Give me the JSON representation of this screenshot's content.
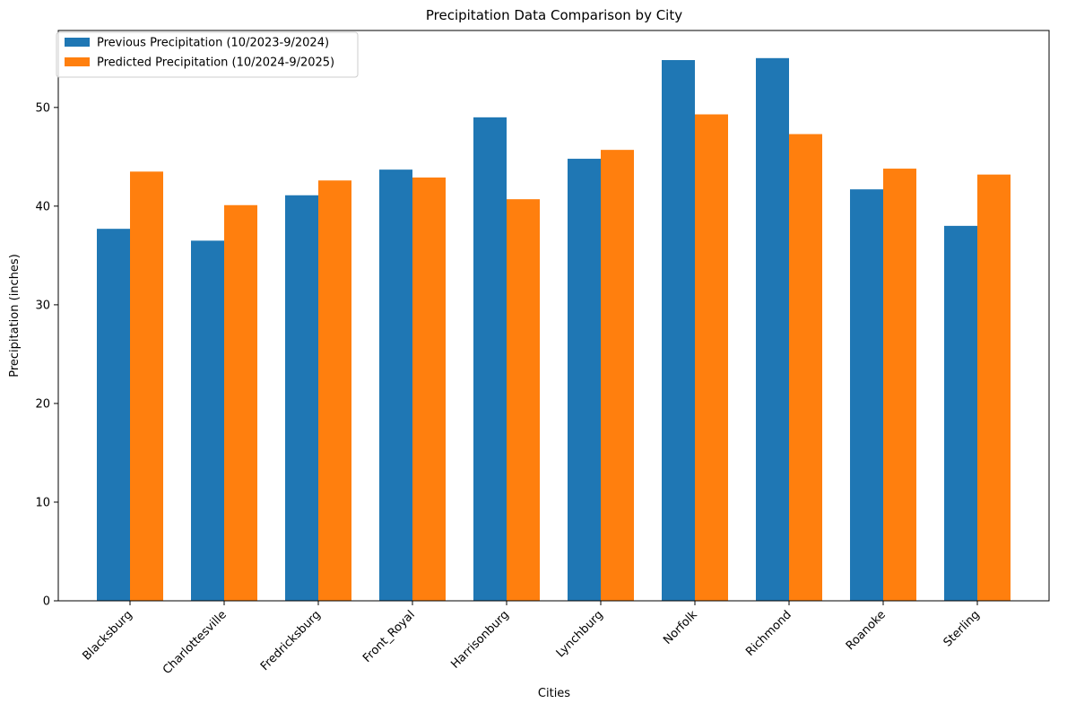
{
  "chart_data": {
    "type": "bar",
    "title": "Precipitation Data Comparison by City",
    "xlabel": "Cities",
    "ylabel": "Precipitation (inches)",
    "categories": [
      "Blacksburg",
      "Charlottesville",
      "Fredricksburg",
      "Front_Royal",
      "Harrisonburg",
      "Lynchburg",
      "Norfolk",
      "Richmond",
      "Roanoke",
      "Sterling"
    ],
    "series": [
      {
        "name": "Previous Precipitation (10/2023-9/2024)",
        "color": "#1f77b4",
        "values": [
          37.7,
          36.5,
          41.1,
          43.7,
          49.0,
          44.8,
          54.8,
          55.0,
          41.7,
          38.0
        ]
      },
      {
        "name": "Predicted Precipitation (10/2024-9/2025)",
        "color": "#ff7f0e",
        "values": [
          43.5,
          40.1,
          42.6,
          42.9,
          40.7,
          45.7,
          49.3,
          47.3,
          43.8,
          43.2
        ]
      }
    ],
    "ylim": [
      0,
      57.8
    ],
    "yticks": [
      0,
      10,
      20,
      30,
      40,
      50
    ],
    "grid": false,
    "legend": "top-left"
  }
}
